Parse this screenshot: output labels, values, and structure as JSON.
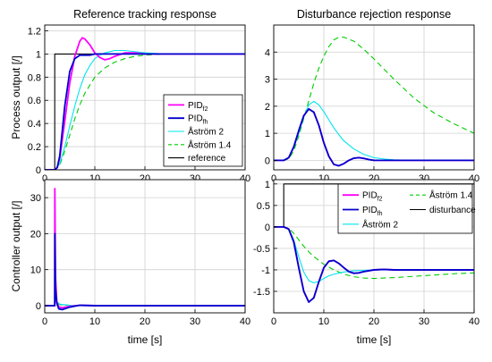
{
  "series_styles": {
    "PID_f2": {
      "color": "#ff00ff",
      "dash": ""
    },
    "PID_fh": {
      "color": "#0000cc",
      "dash": ""
    },
    "Astrom2": {
      "color": "#00e5ee",
      "dash": ""
    },
    "Astrom14": {
      "color": "#00cc00",
      "dash": "6,4"
    },
    "reference": {
      "color": "#000000",
      "dash": ""
    },
    "disturbance": {
      "color": "#000000",
      "dash": ""
    }
  },
  "chart_data": [
    {
      "id": "tl",
      "type": "line",
      "title": "Reference tracking response",
      "xlabel": "",
      "ylabel": "Process output [/]",
      "xlim": [
        0,
        40
      ],
      "ylim": [
        0,
        1.25
      ],
      "xticks": [
        0,
        10,
        20,
        30,
        40
      ],
      "xticklabels": [
        "0",
        "10",
        "20",
        "30",
        "40"
      ],
      "yticks": [
        0,
        0.2,
        0.4,
        0.6,
        0.8,
        1,
        1.2
      ],
      "yticklabels": [
        "0",
        "0.2",
        "0.4",
        "0.6",
        "0.8",
        "1",
        "1.2"
      ],
      "grid": true,
      "legend": {
        "placement": "bottom-right",
        "entries": [
          {
            "key": "PID_f2",
            "label": "PID",
            "sub": "f2"
          },
          {
            "key": "PID_fh",
            "label": "PID",
            "sub": "fh"
          },
          {
            "key": "Astrom2",
            "label": "Åström 2",
            "sub": ""
          },
          {
            "key": "Astrom14",
            "label": "Åström 1.4",
            "sub": ""
          },
          {
            "key": "reference",
            "label": "reference",
            "sub": ""
          }
        ]
      },
      "series": [
        {
          "key": "reference",
          "x": [
            0,
            2,
            2,
            40
          ],
          "y": [
            0,
            0,
            1,
            1
          ]
        },
        {
          "key": "Astrom14",
          "x": [
            0,
            2,
            3,
            4,
            5,
            6,
            7,
            8,
            10,
            12,
            14,
            16,
            18,
            20,
            24,
            28,
            40
          ],
          "y": [
            0,
            0,
            0.04,
            0.16,
            0.3,
            0.44,
            0.56,
            0.66,
            0.8,
            0.88,
            0.93,
            0.96,
            0.98,
            0.99,
            1,
            1,
            1
          ]
        },
        {
          "key": "Astrom2",
          "x": [
            0,
            2,
            3,
            4,
            5,
            6,
            7,
            8,
            9,
            10,
            11,
            12,
            13,
            14,
            15,
            16,
            18,
            20,
            24,
            28,
            40
          ],
          "y": [
            0,
            0,
            0.05,
            0.2,
            0.38,
            0.55,
            0.7,
            0.82,
            0.9,
            0.96,
            0.99,
            1.01,
            1.02,
            1.03,
            1.03,
            1.03,
            1.02,
            1.01,
            1,
            1,
            1
          ]
        },
        {
          "key": "PID_f2",
          "x": [
            0,
            2,
            2.5,
            3,
            4,
            5,
            6,
            7,
            7.5,
            8,
            9,
            10,
            11,
            12,
            13,
            14,
            16,
            18,
            20,
            24,
            28,
            40
          ],
          "y": [
            0,
            0,
            0.02,
            0.1,
            0.42,
            0.75,
            0.98,
            1.11,
            1.14,
            1.13,
            1.08,
            1.01,
            0.97,
            0.95,
            0.96,
            0.98,
            1.01,
            1.01,
            1,
            1,
            1,
            1
          ]
        },
        {
          "key": "PID_fh",
          "x": [
            0,
            2,
            2.5,
            3,
            4,
            5,
            6,
            7,
            8,
            9,
            10,
            12,
            14,
            16,
            20,
            24,
            28,
            40
          ],
          "y": [
            0,
            0,
            0.02,
            0.12,
            0.55,
            0.85,
            0.96,
            0.99,
            0.99,
            0.99,
            1,
            1,
            1,
            1,
            1,
            1,
            1,
            1
          ]
        }
      ]
    },
    {
      "id": "tr",
      "type": "line",
      "title": "Disturbance rejection response",
      "xlabel": "",
      "ylabel": "",
      "xlim": [
        0,
        40
      ],
      "ylim": [
        -0.35,
        5
      ],
      "xticks": [
        0,
        10,
        20,
        30,
        40
      ],
      "xticklabels": [
        "0",
        "10",
        "20",
        "30",
        "40"
      ],
      "yticks": [
        0,
        1,
        2,
        3,
        4
      ],
      "yticklabels": [
        "0",
        "1",
        "2",
        "3",
        "4"
      ],
      "grid": true,
      "series": [
        {
          "key": "Astrom14",
          "x": [
            0,
            2,
            3,
            4,
            5,
            6,
            7,
            8,
            9,
            10,
            11,
            12,
            13,
            14,
            16,
            18,
            20,
            24,
            28,
            32,
            36,
            40
          ],
          "y": [
            0,
            0,
            0.05,
            0.35,
            0.9,
            1.55,
            2.2,
            2.85,
            3.4,
            3.85,
            4.2,
            4.45,
            4.55,
            4.55,
            4.4,
            4.1,
            3.75,
            3.0,
            2.3,
            1.75,
            1.35,
            1.0
          ]
        },
        {
          "key": "Astrom2",
          "x": [
            0,
            2,
            3,
            4,
            5,
            6,
            7,
            8,
            9,
            10,
            11,
            12,
            13,
            14,
            16,
            18,
            20,
            22,
            24,
            28,
            32,
            40
          ],
          "y": [
            0,
            0,
            0.1,
            0.45,
            1.0,
            1.6,
            2.05,
            2.18,
            2.05,
            1.8,
            1.5,
            1.2,
            0.95,
            0.72,
            0.42,
            0.22,
            0.1,
            0.05,
            0.02,
            0,
            0,
            0
          ]
        },
        {
          "key": "PID_f2",
          "x": [
            0,
            2,
            3,
            4,
            5,
            6,
            7,
            8,
            9,
            10,
            11,
            12,
            13,
            14,
            15,
            16,
            17,
            18,
            19,
            20,
            22,
            24,
            28,
            40
          ],
          "y": [
            0,
            0,
            0.1,
            0.5,
            1.1,
            1.65,
            1.9,
            1.78,
            1.3,
            0.65,
            0.15,
            -0.15,
            -0.2,
            -0.12,
            0,
            0.08,
            0.1,
            0.07,
            0.03,
            0,
            0,
            0,
            0,
            0
          ]
        },
        {
          "key": "PID_fh",
          "x": [
            0,
            2,
            3,
            4,
            5,
            6,
            7,
            8,
            9,
            10,
            11,
            12,
            13,
            14,
            15,
            16,
            17,
            18,
            19,
            20,
            22,
            24,
            28,
            40
          ],
          "y": [
            0,
            0,
            0.1,
            0.5,
            1.1,
            1.65,
            1.9,
            1.78,
            1.3,
            0.65,
            0.15,
            -0.15,
            -0.2,
            -0.12,
            0,
            0.08,
            0.1,
            0.07,
            0.03,
            0,
            0,
            0,
            0,
            0
          ]
        }
      ]
    },
    {
      "id": "bl",
      "type": "line",
      "title": "",
      "xlabel": "time [s]",
      "ylabel": "Controller output [/]",
      "xlim": [
        0,
        40
      ],
      "ylim": [
        -2,
        35
      ],
      "xticks": [
        0,
        10,
        20,
        30,
        40
      ],
      "xticklabels": [
        "0",
        "10",
        "20",
        "30",
        "40"
      ],
      "yticks": [
        0,
        10,
        20,
        30
      ],
      "yticklabels": [
        "0",
        "10",
        "20",
        "30"
      ],
      "grid": true,
      "series": [
        {
          "key": "Astrom14",
          "x": [
            0,
            2,
            2.05,
            2.3,
            3,
            5,
            8,
            40
          ],
          "y": [
            0,
            0,
            1.4,
            0.9,
            0.3,
            0.1,
            0.02,
            0
          ]
        },
        {
          "key": "Astrom2",
          "x": [
            0,
            2,
            2.05,
            2.3,
            3,
            5,
            8,
            40
          ],
          "y": [
            0,
            0,
            2,
            1.2,
            0.4,
            0.1,
            0,
            0
          ]
        },
        {
          "key": "PID_f2",
          "x": [
            0,
            2,
            2.02,
            2.15,
            2.4,
            2.8,
            3.5,
            5,
            7,
            10,
            40
          ],
          "y": [
            0,
            0,
            32.5,
            8,
            1.2,
            -0.4,
            -0.6,
            -0.2,
            0.1,
            0,
            0
          ]
        },
        {
          "key": "PID_fh",
          "x": [
            0,
            2,
            2.02,
            2.15,
            2.4,
            2.8,
            3.5,
            5,
            7,
            10,
            40
          ],
          "y": [
            0,
            0,
            20,
            5,
            0.8,
            -0.9,
            -1.1,
            -0.4,
            0.1,
            0,
            0
          ]
        }
      ]
    },
    {
      "id": "br",
      "type": "line",
      "title": "",
      "xlabel": "time [s]",
      "ylabel": "",
      "xlim": [
        0,
        40
      ],
      "ylim": [
        -2,
        1.1
      ],
      "xticks": [
        0,
        10,
        20,
        30,
        40
      ],
      "xticklabels": [
        "0",
        "10",
        "20",
        "30",
        "40"
      ],
      "yticks": [
        -1.5,
        -1,
        -0.5,
        0,
        0.5,
        1
      ],
      "yticklabels": [
        "-1.5",
        "-1",
        "-0.5",
        "0",
        "0.5",
        "1"
      ],
      "grid": true,
      "legend": {
        "placement": "top-right",
        "entries": [
          {
            "key": "PID_f2",
            "label": "PID",
            "sub": "f2"
          },
          {
            "key": "Astrom14",
            "label": "Åström 1.4",
            "sub": ""
          },
          {
            "key": "PID_fh",
            "label": "PID",
            "sub": "fh"
          },
          {
            "key": "disturbance",
            "label": "disturbance",
            "sub": ""
          },
          {
            "key": "Astrom2",
            "label": "Åström 2",
            "sub": ""
          }
        ]
      },
      "series": [
        {
          "key": "disturbance",
          "x": [
            0,
            2,
            2,
            40
          ],
          "y": [
            0,
            0,
            1,
            1
          ]
        },
        {
          "key": "Astrom14",
          "x": [
            0,
            2,
            3,
            4,
            5,
            6,
            7,
            8,
            10,
            12,
            14,
            16,
            18,
            20,
            22,
            24,
            28,
            32,
            36,
            40
          ],
          "y": [
            0,
            0,
            -0.03,
            -0.15,
            -0.3,
            -0.45,
            -0.58,
            -0.69,
            -0.87,
            -1.0,
            -1.1,
            -1.16,
            -1.19,
            -1.2,
            -1.19,
            -1.18,
            -1.15,
            -1.12,
            -1.09,
            -1.07
          ]
        },
        {
          "key": "Astrom2",
          "x": [
            0,
            2,
            3,
            4,
            5,
            6,
            7,
            8,
            9,
            10,
            11,
            12,
            14,
            16,
            18,
            20,
            24,
            28,
            40
          ],
          "y": [
            0,
            0,
            -0.05,
            -0.3,
            -0.7,
            -1.05,
            -1.25,
            -1.3,
            -1.27,
            -1.2,
            -1.14,
            -1.1,
            -1.05,
            -1.02,
            -1.01,
            -1.0,
            -1.0,
            -1.0,
            -1.0
          ]
        },
        {
          "key": "PID_f2",
          "x": [
            0,
            2,
            3,
            4,
            5,
            6,
            7,
            8,
            9,
            10,
            11,
            12,
            13,
            14,
            15,
            16,
            17,
            18,
            20,
            22,
            24,
            28,
            40
          ],
          "y": [
            0,
            0,
            -0.05,
            -0.35,
            -0.95,
            -1.5,
            -1.75,
            -1.65,
            -1.28,
            -0.95,
            -0.8,
            -0.78,
            -0.85,
            -0.95,
            -1.04,
            -1.08,
            -1.07,
            -1.04,
            -1.0,
            -0.99,
            -1.0,
            -1.0,
            -1.0
          ]
        },
        {
          "key": "PID_fh",
          "x": [
            0,
            2,
            3,
            4,
            5,
            6,
            7,
            8,
            9,
            10,
            11,
            12,
            13,
            14,
            15,
            16,
            17,
            18,
            20,
            22,
            24,
            28,
            40
          ],
          "y": [
            0,
            0,
            -0.05,
            -0.35,
            -0.95,
            -1.5,
            -1.75,
            -1.65,
            -1.28,
            -0.95,
            -0.8,
            -0.78,
            -0.85,
            -0.95,
            -1.04,
            -1.08,
            -1.07,
            -1.04,
            -1.0,
            -0.99,
            -1.0,
            -1.0,
            -1.0
          ]
        }
      ]
    }
  ]
}
